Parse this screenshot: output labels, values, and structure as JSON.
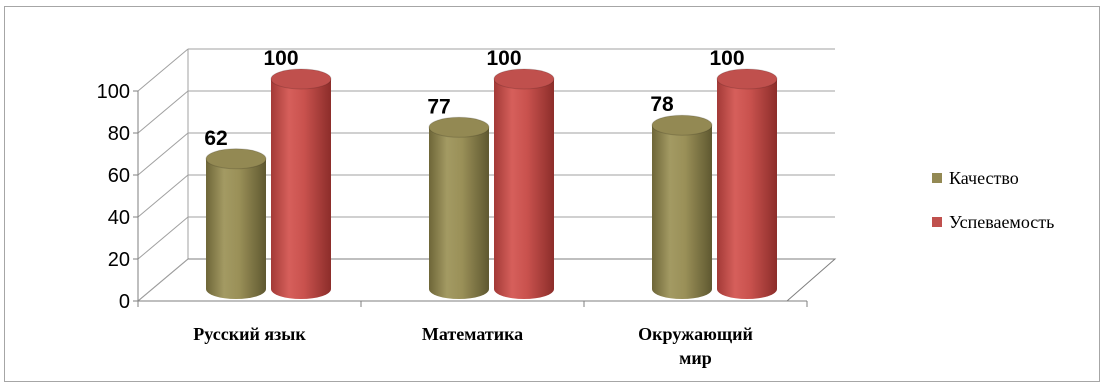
{
  "chart_data": {
    "type": "bar",
    "style": "3d-cylinder",
    "categories": [
      [
        "Русский язык"
      ],
      [
        "Математика"
      ],
      [
        "Окружающий",
        "мир"
      ]
    ],
    "series": [
      {
        "name": "Качество",
        "values": [
          62,
          77,
          78
        ],
        "color": "#938953"
      },
      {
        "name": "Успеваемость",
        "values": [
          100,
          100,
          100
        ],
        "color": "#c0504d"
      }
    ],
    "ylim": [
      0,
      100
    ],
    "yticks": [
      0,
      20,
      40,
      60,
      80,
      100
    ],
    "grid": true,
    "legend_position": "right"
  }
}
